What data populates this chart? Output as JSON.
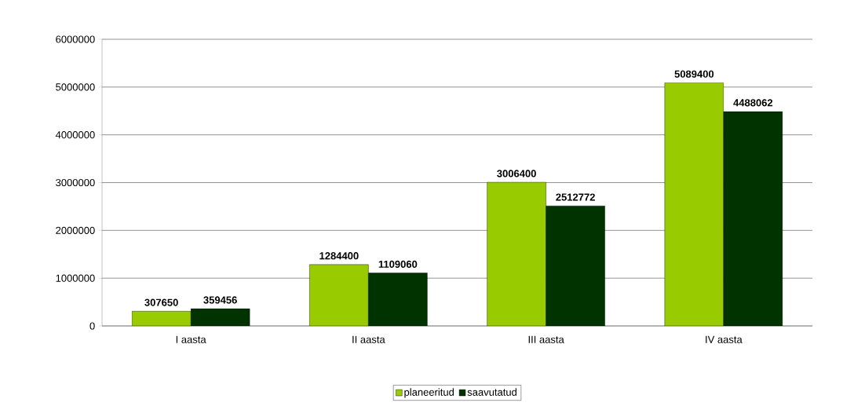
{
  "chart_data": {
    "type": "bar",
    "categories": [
      "I aasta",
      "II aasta",
      "III aasta",
      "IV aasta"
    ],
    "series": [
      {
        "name": "planeeritud",
        "color": "#99cc00",
        "values": [
          307650,
          1284400,
          3006400,
          5089400
        ]
      },
      {
        "name": "saavutatud",
        "color": "#003300",
        "values": [
          359456,
          1109060,
          2512772,
          4488062
        ]
      }
    ],
    "ylim": [
      0,
      6000000
    ],
    "yticks": [
      0,
      1000000,
      2000000,
      3000000,
      4000000,
      5000000,
      6000000
    ],
    "grid": "y",
    "legend": "bottom",
    "data_labels": true
  }
}
